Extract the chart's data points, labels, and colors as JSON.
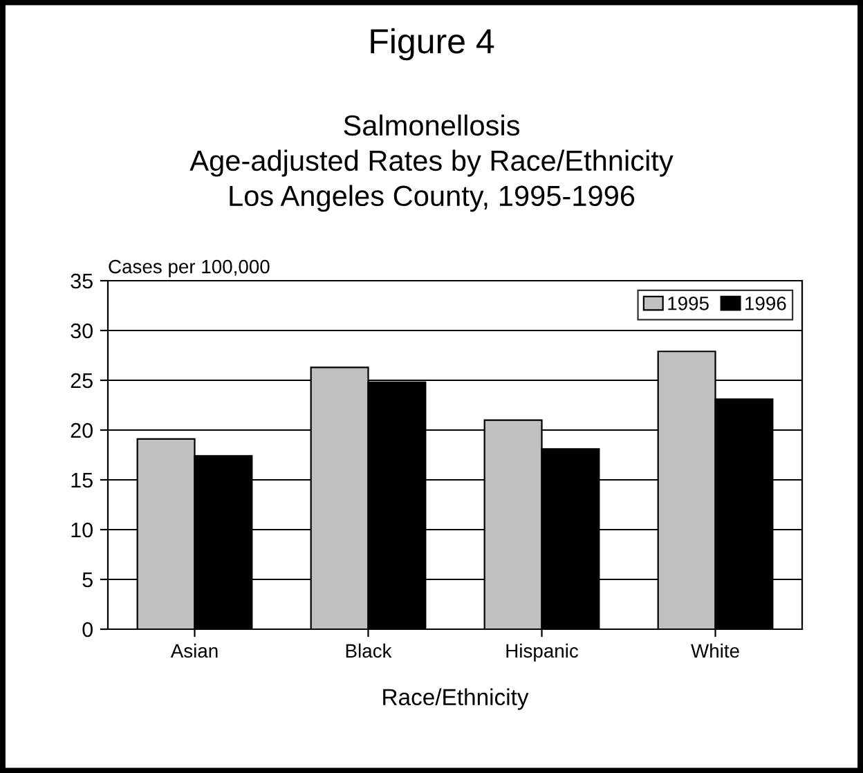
{
  "chart_data": {
    "type": "bar",
    "title": "Figure 4",
    "subtitle": "Salmonellosis\nAge-adjusted Rates by Race/Ethnicity\nLos Angeles County, 1995-1996",
    "xlabel": "Race/Ethnicity",
    "ylabel": "Cases per 100,000",
    "categories": [
      "Asian",
      "Black",
      "Hispanic",
      "White"
    ],
    "series": [
      {
        "name": "1995",
        "color": "#c0c0c0",
        "values": [
          19.1,
          26.3,
          21.0,
          27.9
        ]
      },
      {
        "name": "1996",
        "color": "#000000",
        "values": [
          17.4,
          24.8,
          18.1,
          23.1
        ]
      }
    ],
    "ylim": [
      0,
      35
    ],
    "yticks": [
      0,
      5,
      10,
      15,
      20,
      25,
      30,
      35
    ],
    "grid": "y",
    "legend": "top right"
  }
}
